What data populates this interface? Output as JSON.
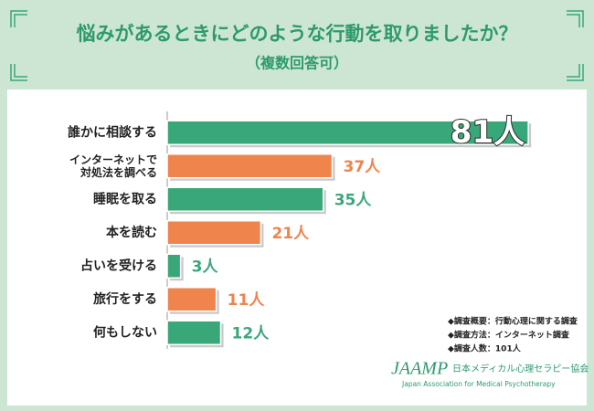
{
  "chart_data": {
    "type": "bar",
    "orientation": "horizontal",
    "title": "悩みがあるときにどのような行動を取りましたか？",
    "subtitle": "（複数回答可）",
    "categories": [
      "誰かに相談する",
      "インターネットで\n対処法を調べる",
      "睡眠を取る",
      "本を読む",
      "占いを受ける",
      "旅行をする",
      "何もしない"
    ],
    "values": [
      81,
      37,
      35,
      21,
      3,
      11,
      12
    ],
    "value_labels": [
      "81人",
      "37人",
      "35人",
      "21人",
      "3人",
      "11人",
      "12人"
    ],
    "colors": [
      "#3aa77a",
      "#ef844c",
      "#3aa77a",
      "#ef844c",
      "#3aa77a",
      "#ef844c",
      "#3aa77a"
    ],
    "xlim": [
      0,
      82
    ],
    "notes": [
      "◆調査概要：行動心理に関する調査",
      "◆調査方法：インターネット調査",
      "◆調査人数：101人"
    ],
    "logo": {
      "mark": "JAAMP",
      "name": "日本メディカル心理セラピー協会",
      "english": "Japan Association for Medical Psychotherapy"
    }
  }
}
